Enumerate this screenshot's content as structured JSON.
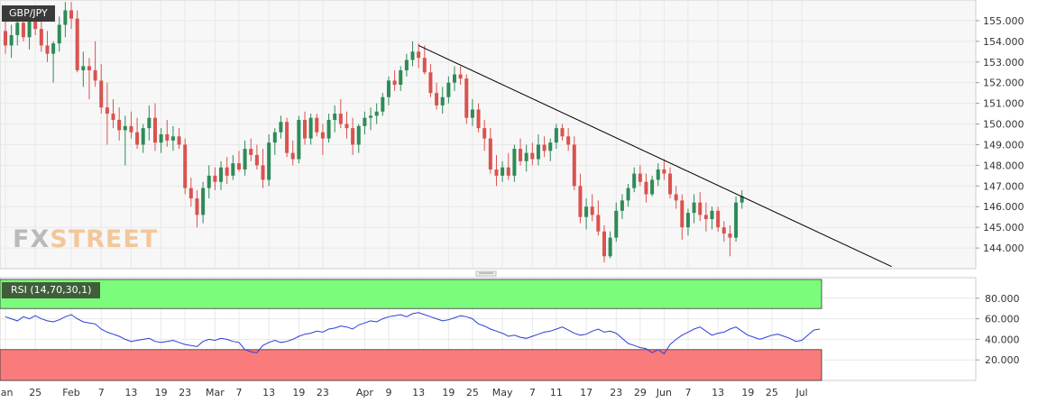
{
  "symbol": "GBP/JPY",
  "logo": {
    "part1": "FX",
    "part2": "STREET"
  },
  "indicator_label": "RSI (14,70,30,1)",
  "chart_data": [
    {
      "type": "candlestick",
      "title": "GBP/JPY",
      "ylim": [
        143.0,
        156.0
      ],
      "y_ticks": [
        "144.000",
        "145.000",
        "146.000",
        "147.000",
        "148.000",
        "149.000",
        "150.000",
        "151.000",
        "152.000",
        "153.000",
        "154.000",
        "155.000"
      ],
      "x_ticks": [
        {
          "label": "Jan",
          "index": 0
        },
        {
          "label": "25",
          "index": 5
        },
        {
          "label": "Feb",
          "index": 11
        },
        {
          "label": "7",
          "index": 16
        },
        {
          "label": "13",
          "index": 21
        },
        {
          "label": "19",
          "index": 26
        },
        {
          "label": "23",
          "index": 30
        },
        {
          "label": "Mar",
          "index": 35
        },
        {
          "label": "7",
          "index": 39
        },
        {
          "label": "13",
          "index": 44
        },
        {
          "label": "19",
          "index": 49
        },
        {
          "label": "23",
          "index": 53
        },
        {
          "label": "Apr",
          "index": 60
        },
        {
          "label": "9",
          "index": 64
        },
        {
          "label": "13",
          "index": 69
        },
        {
          "label": "19",
          "index": 74
        },
        {
          "label": "25",
          "index": 78
        },
        {
          "label": "May",
          "index": 83
        },
        {
          "label": "7",
          "index": 88
        },
        {
          "label": "11",
          "index": 92
        },
        {
          "label": "17",
          "index": 97
        },
        {
          "label": "23",
          "index": 102
        },
        {
          "label": "29",
          "index": 106
        },
        {
          "label": "Jun",
          "index": 110
        },
        {
          "label": "7",
          "index": 114
        },
        {
          "label": "13",
          "index": 119
        },
        {
          "label": "19",
          "index": 124
        },
        {
          "label": "25",
          "index": 128
        },
        {
          "label": "Jul",
          "index": 133
        }
      ],
      "ohlc": [
        [
          154.5,
          155.0,
          153.4,
          153.8
        ],
        [
          153.8,
          154.8,
          153.2,
          154.3
        ],
        [
          154.3,
          155.2,
          153.8,
          154.9
        ],
        [
          154.9,
          155.3,
          154.0,
          154.2
        ],
        [
          154.2,
          155.5,
          153.6,
          155.0
        ],
        [
          155.0,
          155.6,
          154.3,
          154.6
        ],
        [
          154.6,
          155.0,
          153.5,
          153.8
        ],
        [
          153.8,
          154.5,
          153.0,
          153.4
        ],
        [
          153.4,
          154.0,
          152.0,
          153.9
        ],
        [
          153.9,
          155.2,
          153.5,
          154.8
        ],
        [
          154.8,
          155.9,
          154.2,
          155.5
        ],
        [
          155.5,
          155.9,
          154.6,
          155.1
        ],
        [
          155.1,
          155.5,
          152.5,
          152.6
        ],
        [
          152.6,
          153.5,
          151.8,
          152.8
        ],
        [
          152.8,
          153.2,
          151.2,
          152.6
        ],
        [
          152.6,
          154.0,
          151.8,
          152.1
        ],
        [
          152.1,
          152.9,
          150.5,
          150.8
        ],
        [
          150.8,
          152.0,
          149.0,
          150.5
        ],
        [
          150.5,
          151.2,
          149.8,
          150.2
        ],
        [
          150.2,
          150.8,
          149.2,
          149.7
        ],
        [
          149.7,
          150.4,
          148.0,
          149.9
        ],
        [
          149.9,
          150.6,
          149.3,
          149.6
        ],
        [
          149.6,
          150.3,
          148.8,
          149.0
        ],
        [
          149.0,
          150.0,
          148.6,
          149.8
        ],
        [
          149.8,
          150.9,
          149.2,
          150.3
        ],
        [
          150.3,
          151.0,
          148.7,
          149.1
        ],
        [
          149.1,
          149.8,
          148.6,
          149.5
        ],
        [
          149.5,
          150.2,
          148.9,
          149.2
        ],
        [
          149.2,
          149.9,
          148.7,
          149.4
        ],
        [
          149.4,
          149.8,
          148.8,
          149.0
        ],
        [
          149.0,
          149.3,
          146.6,
          146.9
        ],
        [
          146.9,
          147.4,
          146.0,
          146.4
        ],
        [
          146.4,
          146.8,
          145.0,
          145.6
        ],
        [
          145.6,
          147.2,
          145.2,
          146.9
        ],
        [
          146.9,
          148.0,
          146.4,
          147.5
        ],
        [
          147.5,
          147.9,
          146.8,
          147.2
        ],
        [
          147.2,
          148.2,
          146.8,
          147.9
        ],
        [
          147.9,
          148.4,
          147.1,
          147.5
        ],
        [
          147.5,
          148.5,
          147.3,
          148.1
        ],
        [
          148.1,
          148.7,
          147.7,
          147.8
        ],
        [
          147.8,
          149.2,
          147.5,
          148.8
        ],
        [
          148.8,
          149.3,
          148.2,
          148.5
        ],
        [
          148.5,
          149.0,
          147.8,
          148.0
        ],
        [
          148.0,
          148.8,
          146.9,
          147.3
        ],
        [
          147.3,
          149.5,
          147.0,
          149.1
        ],
        [
          149.1,
          149.8,
          148.5,
          149.6
        ],
        [
          149.6,
          150.4,
          149.3,
          150.1
        ],
        [
          150.1,
          150.3,
          148.4,
          148.6
        ],
        [
          148.6,
          149.2,
          148.0,
          148.3
        ],
        [
          148.3,
          150.4,
          148.1,
          150.2
        ],
        [
          150.2,
          150.6,
          149.0,
          149.3
        ],
        [
          149.3,
          150.5,
          149.0,
          150.3
        ],
        [
          150.3,
          150.5,
          149.4,
          149.6
        ],
        [
          149.6,
          150.0,
          148.5,
          149.3
        ],
        [
          149.3,
          150.5,
          149.1,
          150.2
        ],
        [
          150.2,
          150.9,
          149.6,
          150.5
        ],
        [
          150.5,
          151.2,
          149.8,
          150.0
        ],
        [
          150.0,
          150.6,
          149.3,
          149.8
        ],
        [
          149.8,
          150.3,
          148.5,
          149.0
        ],
        [
          149.0,
          150.0,
          148.6,
          149.9
        ],
        [
          149.9,
          150.6,
          149.5,
          150.3
        ],
        [
          150.3,
          150.8,
          149.7,
          150.4
        ],
        [
          150.4,
          151.0,
          150.0,
          150.6
        ],
        [
          150.6,
          151.5,
          150.4,
          151.3
        ],
        [
          151.3,
          152.3,
          150.9,
          152.1
        ],
        [
          152.1,
          152.6,
          151.6,
          151.9
        ],
        [
          151.9,
          152.8,
          151.6,
          152.6
        ],
        [
          152.6,
          153.4,
          152.3,
          153.1
        ],
        [
          153.1,
          154.0,
          152.8,
          153.5
        ],
        [
          153.5,
          153.9,
          152.7,
          153.2
        ],
        [
          153.2,
          153.8,
          152.4,
          152.5
        ],
        [
          152.5,
          152.9,
          151.3,
          151.5
        ],
        [
          151.5,
          152.0,
          150.7,
          150.9
        ],
        [
          150.9,
          151.8,
          150.5,
          151.3
        ],
        [
          151.3,
          152.3,
          151.0,
          152.0
        ],
        [
          152.0,
          152.8,
          151.6,
          152.4
        ],
        [
          152.4,
          152.8,
          151.9,
          152.2
        ],
        [
          152.2,
          152.4,
          150.0,
          150.3
        ],
        [
          150.3,
          151.2,
          149.9,
          150.7
        ],
        [
          150.7,
          151.0,
          149.6,
          149.8
        ],
        [
          149.8,
          150.2,
          148.7,
          149.3
        ],
        [
          149.3,
          149.8,
          147.6,
          147.8
        ],
        [
          147.8,
          148.5,
          147.0,
          147.5
        ],
        [
          147.5,
          148.2,
          147.2,
          147.9
        ],
        [
          147.9,
          148.6,
          147.3,
          147.5
        ],
        [
          147.5,
          149.0,
          147.2,
          148.8
        ],
        [
          148.8,
          149.3,
          148.0,
          148.2
        ],
        [
          148.2,
          149.0,
          147.7,
          148.6
        ],
        [
          148.6,
          149.1,
          148.0,
          148.3
        ],
        [
          148.3,
          149.5,
          148.0,
          149.0
        ],
        [
          149.0,
          149.4,
          148.4,
          148.7
        ],
        [
          148.7,
          149.3,
          148.2,
          149.1
        ],
        [
          149.1,
          150.0,
          148.8,
          149.8
        ],
        [
          149.8,
          150.0,
          149.2,
          149.4
        ],
        [
          149.4,
          149.8,
          148.7,
          149.0
        ],
        [
          149.0,
          149.4,
          146.8,
          147.0
        ],
        [
          147.0,
          147.6,
          145.2,
          145.5
        ],
        [
          145.5,
          146.4,
          144.9,
          146.0
        ],
        [
          146.0,
          146.6,
          145.3,
          145.6
        ],
        [
          145.6,
          146.3,
          144.6,
          144.8
        ],
        [
          144.8,
          145.1,
          143.3,
          143.6
        ],
        [
          143.6,
          144.8,
          143.5,
          144.5
        ],
        [
          144.5,
          146.2,
          144.3,
          145.8
        ],
        [
          145.8,
          146.6,
          145.4,
          146.3
        ],
        [
          146.3,
          147.1,
          146.0,
          146.9
        ],
        [
          146.9,
          147.9,
          146.7,
          147.6
        ],
        [
          147.6,
          148.0,
          147.0,
          147.2
        ],
        [
          147.2,
          147.6,
          146.2,
          146.6
        ],
        [
          146.6,
          147.5,
          146.5,
          147.3
        ],
        [
          147.3,
          148.1,
          147.0,
          147.8
        ],
        [
          147.8,
          148.3,
          147.3,
          147.6
        ],
        [
          147.6,
          147.9,
          146.4,
          146.6
        ],
        [
          146.6,
          147.0,
          145.9,
          146.3
        ],
        [
          146.3,
          146.6,
          144.4,
          145.0
        ],
        [
          145.0,
          145.9,
          144.6,
          145.7
        ],
        [
          145.7,
          146.6,
          145.2,
          146.2
        ],
        [
          146.2,
          146.7,
          145.3,
          145.6
        ],
        [
          145.6,
          146.2,
          144.8,
          145.4
        ],
        [
          145.4,
          146.0,
          144.9,
          145.8
        ],
        [
          145.8,
          146.0,
          144.8,
          145.0
        ],
        [
          145.0,
          145.3,
          144.3,
          144.7
        ],
        [
          144.7,
          145.1,
          143.6,
          144.5
        ],
        [
          144.5,
          146.5,
          144.3,
          146.2
        ],
        [
          146.2,
          146.8,
          145.9,
          146.5
        ]
      ],
      "trendline": {
        "from": {
          "index": 69,
          "value": 153.8
        },
        "to": {
          "index": 148,
          "value": 143.1
        }
      }
    },
    {
      "type": "line",
      "title": "RSI (14,70,30,1)",
      "ylim": [
        0,
        100
      ],
      "y_ticks": [
        "20.000",
        "40.000",
        "60.000",
        "80.000"
      ],
      "levels": {
        "overbought": 70,
        "oversold": 30
      },
      "values": [
        62,
        60,
        58,
        62,
        60,
        63,
        60,
        58,
        57,
        59,
        62,
        64,
        60,
        57,
        56,
        55,
        50,
        47,
        45,
        43,
        40,
        38,
        39,
        40,
        41,
        38,
        37,
        38,
        39,
        37,
        35,
        34,
        33,
        38,
        40,
        39,
        41,
        40,
        38,
        37,
        30,
        28,
        27,
        34,
        37,
        39,
        37,
        38,
        40,
        43,
        45,
        46,
        48,
        47,
        50,
        51,
        53,
        52,
        50,
        54,
        56,
        58,
        57,
        60,
        62,
        63,
        64,
        62,
        65,
        66,
        64,
        62,
        60,
        58,
        59,
        61,
        63,
        62,
        60,
        55,
        53,
        50,
        48,
        46,
        43,
        44,
        42,
        41,
        43,
        45,
        47,
        48,
        50,
        52,
        49,
        46,
        44,
        45,
        48,
        50,
        47,
        48,
        46,
        41,
        36,
        34,
        32,
        31,
        27,
        30,
        26,
        35,
        40,
        44,
        47,
        50,
        52,
        48,
        44,
        46,
        47,
        50,
        52,
        48,
        44,
        42,
        40,
        42,
        44,
        45,
        43,
        41,
        38,
        39,
        44,
        49,
        50
      ],
      "colors": {
        "line": "#2b3fd6",
        "overbought_fill": "#7cfc7c",
        "oversold_fill": "#fa7b7b"
      }
    }
  ],
  "colors": {
    "up": "#2e8b57",
    "down": "#d9534f",
    "grid": "#e8e8e8",
    "trendline": "#000000"
  }
}
